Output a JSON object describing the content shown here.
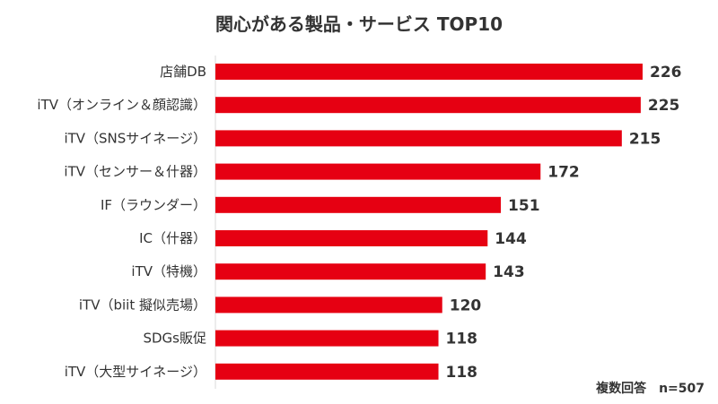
{
  "chart_data": {
    "type": "bar",
    "orientation": "horizontal",
    "title": "関心がある製品・サービス TOP10",
    "categories": [
      "店舗DB",
      "iTV（オンライン＆顔認識）",
      "iTV（SNSサイネージ）",
      "iTV（センサー＆什器）",
      "IF（ラウンダー）",
      "IC（什器）",
      "iTV（特機）",
      "iTV（biit 擬似売場）",
      "SDGs販促",
      "iTV（大型サイネージ）"
    ],
    "values": [
      226,
      225,
      215,
      172,
      151,
      144,
      143,
      120,
      118,
      118
    ],
    "xlim": [
      0,
      226
    ],
    "bar_color": "#e60012",
    "grid": false,
    "note": "複数回答　n=507"
  }
}
